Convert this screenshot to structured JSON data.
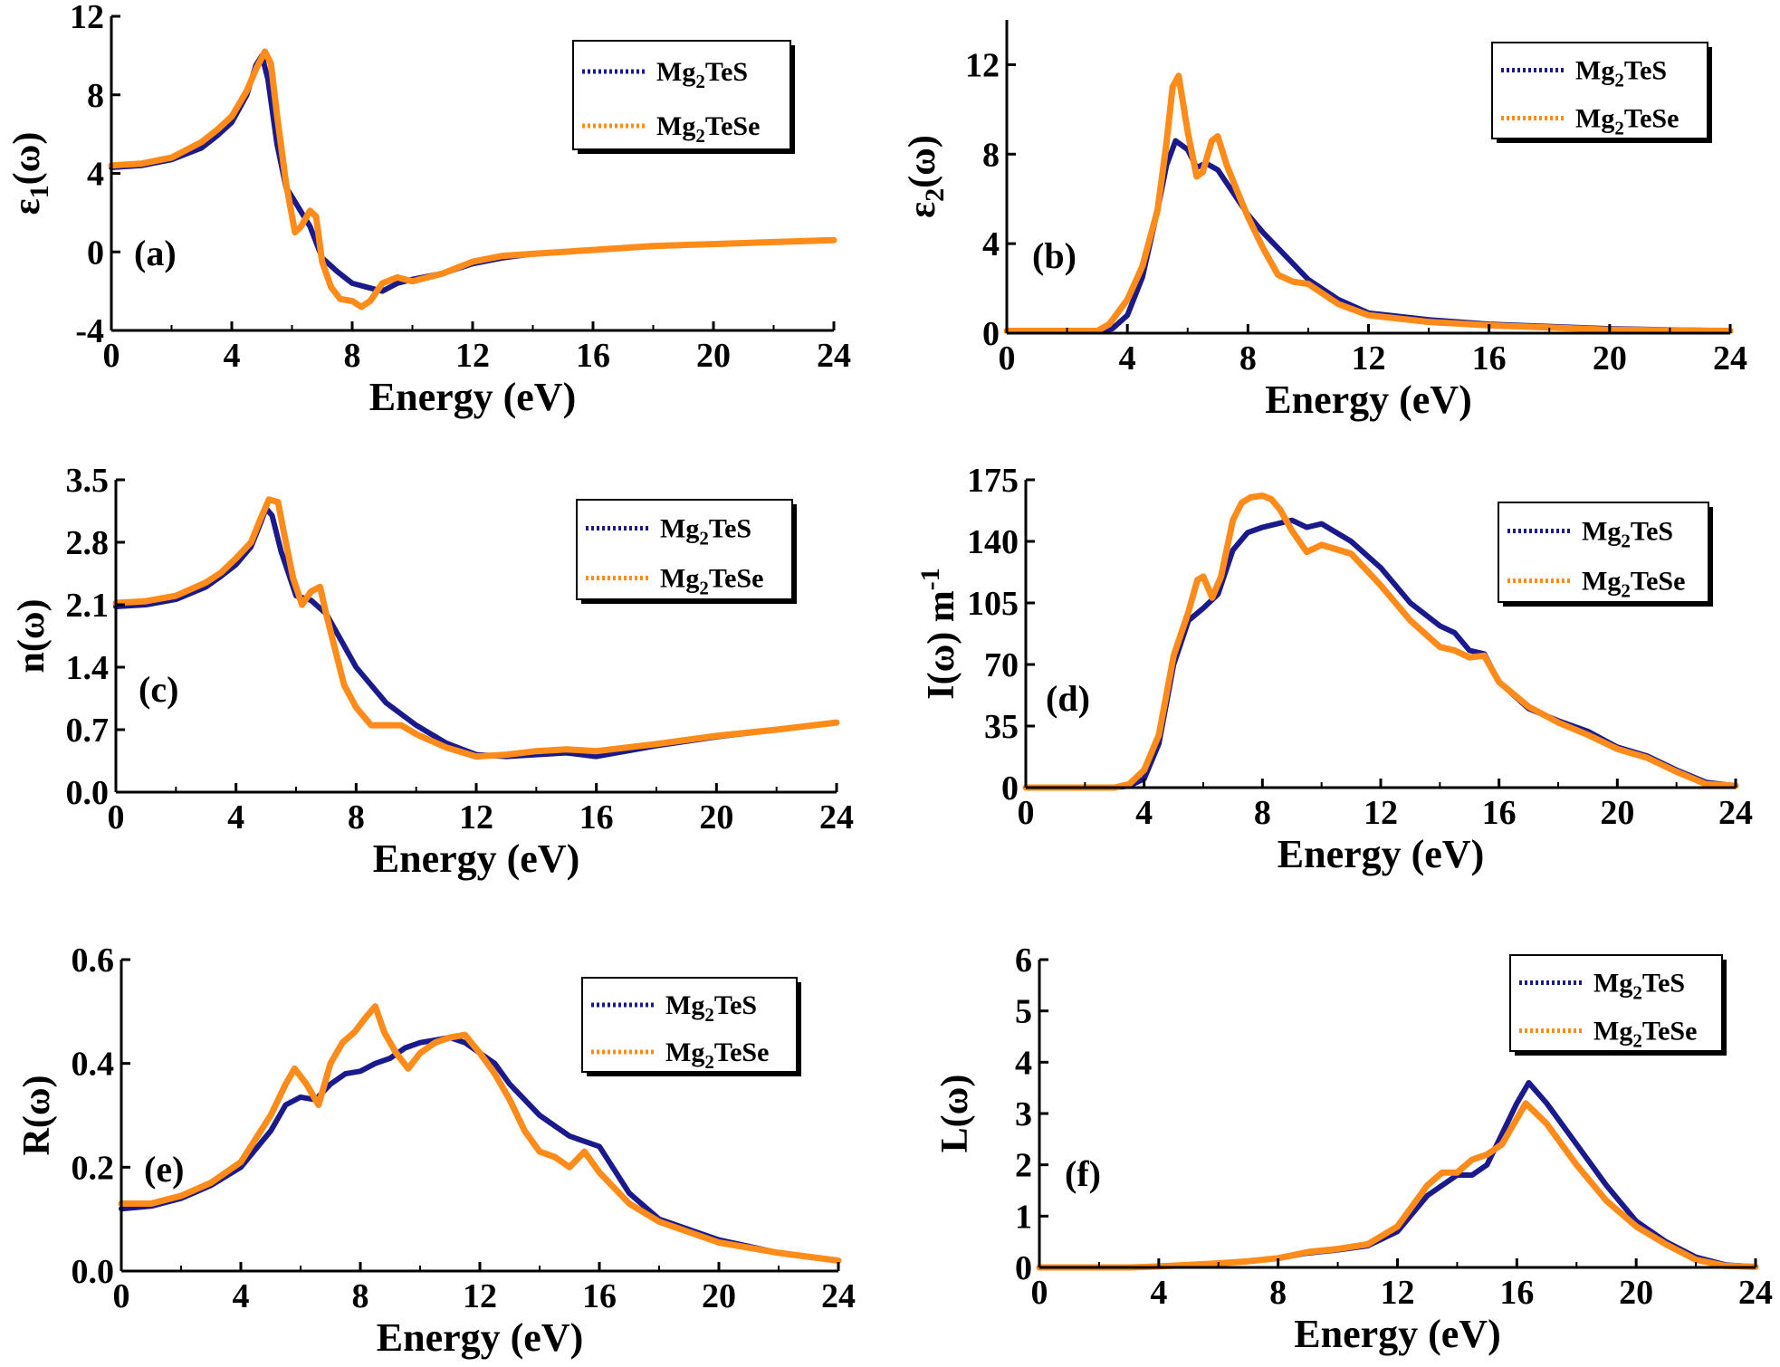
{
  "colors": {
    "Mg2TeS": "#1a1a8c",
    "Mg2TeSe": "#ff8c1a",
    "axis": "#000000"
  },
  "chart_data": [
    {
      "type": "line",
      "panel_label": "(a)",
      "xlabel": "Energy (eV)",
      "ylabel": "ε1(ω)",
      "ylabel_parts": {
        "base": "ε",
        "sub": "1",
        "rest": "(ω)"
      },
      "xlim": [
        0,
        24
      ],
      "ylim": [
        -4,
        12
      ],
      "xticks": [
        0,
        4,
        8,
        12,
        16,
        20,
        24
      ],
      "yticks": [
        -4,
        0,
        4,
        8,
        12
      ],
      "legend": {
        "placement": "top-right",
        "entries": [
          {
            "base": "Mg",
            "sub": "2",
            "rest": "TeS"
          },
          {
            "base": "Mg",
            "sub": "2",
            "rest": "TeSe"
          }
        ]
      },
      "series": [
        {
          "name": "Mg2TeS",
          "x": [
            0,
            1,
            2,
            3,
            3.5,
            4,
            4.5,
            4.8,
            5.0,
            5.2,
            5.5,
            5.8,
            6.2,
            6.6,
            7.0,
            7.5,
            8.0,
            8.5,
            9.0,
            9.5,
            10,
            11,
            12,
            13,
            14,
            16,
            18,
            20,
            22,
            24
          ],
          "y": [
            4.3,
            4.4,
            4.7,
            5.3,
            5.9,
            6.6,
            8.0,
            9.5,
            10.0,
            8.8,
            5.5,
            3.3,
            2.3,
            1.3,
            -0.3,
            -1.0,
            -1.6,
            -1.8,
            -2.0,
            -1.6,
            -1.4,
            -1.1,
            -0.6,
            -0.3,
            -0.1,
            0.1,
            0.3,
            0.4,
            0.5,
            0.6
          ]
        },
        {
          "name": "Mg2TeSe",
          "x": [
            0,
            1,
            2,
            3,
            3.5,
            4,
            4.5,
            4.8,
            5.1,
            5.3,
            5.5,
            5.8,
            6.1,
            6.3,
            6.6,
            6.8,
            7.0,
            7.3,
            7.6,
            8.0,
            8.3,
            8.6,
            9.0,
            9.5,
            10,
            11,
            12,
            13,
            14,
            16,
            18,
            20,
            22,
            24
          ],
          "y": [
            4.4,
            4.5,
            4.8,
            5.6,
            6.2,
            6.9,
            8.2,
            9.3,
            10.2,
            9.6,
            7.0,
            3.5,
            1.0,
            1.3,
            2.1,
            1.8,
            -0.5,
            -1.8,
            -2.4,
            -2.5,
            -2.8,
            -2.5,
            -1.6,
            -1.3,
            -1.5,
            -1.1,
            -0.5,
            -0.2,
            -0.1,
            0.1,
            0.3,
            0.4,
            0.5,
            0.6
          ]
        }
      ]
    },
    {
      "type": "line",
      "panel_label": "(b)",
      "xlabel": "Energy (eV)",
      "ylabel": "ε2(ω)",
      "ylabel_parts": {
        "base": "ε",
        "sub": "2",
        "rest": "(ω)"
      },
      "xlim": [
        0,
        24
      ],
      "ylim": [
        0,
        14
      ],
      "xticks": [
        0,
        4,
        8,
        12,
        16,
        20,
        24
      ],
      "yticks": [
        0,
        4,
        8,
        12
      ],
      "legend": {
        "placement": "top-right",
        "entries": [
          {
            "base": "Mg",
            "sub": "2",
            "rest": "TeS"
          },
          {
            "base": "Mg",
            "sub": "2",
            "rest": "TeSe"
          }
        ]
      },
      "series": [
        {
          "name": "Mg2TeS",
          "x": [
            0,
            3,
            3.5,
            4,
            4.5,
            5.0,
            5.3,
            5.6,
            6.0,
            6.3,
            6.6,
            7.0,
            7.5,
            8,
            8.5,
            9,
            10,
            11,
            12,
            14,
            16,
            18,
            20,
            24
          ],
          "y": [
            0.1,
            0.1,
            0.2,
            0.8,
            2.5,
            5.5,
            7.5,
            8.6,
            8.2,
            7.4,
            7.6,
            7.3,
            6.3,
            5.3,
            4.5,
            3.8,
            2.4,
            1.5,
            0.9,
            0.6,
            0.4,
            0.3,
            0.2,
            0.1
          ]
        },
        {
          "name": "Mg2TeSe",
          "x": [
            0,
            3,
            3.4,
            4,
            4.5,
            5.0,
            5.3,
            5.5,
            5.7,
            6.0,
            6.3,
            6.5,
            6.8,
            7.0,
            7.3,
            7.6,
            8,
            8.5,
            9,
            9.5,
            10,
            11,
            12,
            14,
            16,
            18,
            20,
            24
          ],
          "y": [
            0.1,
            0.1,
            0.4,
            1.5,
            3.0,
            5.5,
            8.5,
            11.0,
            11.5,
            9.0,
            7.0,
            7.2,
            8.6,
            8.8,
            7.5,
            6.5,
            5.2,
            3.8,
            2.6,
            2.3,
            2.2,
            1.3,
            0.8,
            0.5,
            0.35,
            0.25,
            0.15,
            0.1
          ]
        }
      ]
    },
    {
      "type": "line",
      "panel_label": "(c)",
      "xlabel": "Energy (eV)",
      "ylabel": "n(ω)",
      "xlim": [
        0,
        24
      ],
      "ylim": [
        0,
        3.5
      ],
      "xticks": [
        0,
        4,
        8,
        12,
        16,
        20,
        24
      ],
      "yticks": [
        "0.0",
        "0.7",
        "1.4",
        "2.1",
        "2.8",
        "3.5"
      ],
      "legend": {
        "placement": "top-right",
        "entries": [
          {
            "base": "Mg",
            "sub": "2",
            "rest": "TeS"
          },
          {
            "base": "Mg",
            "sub": "2",
            "rest": "TeSe"
          }
        ]
      },
      "series": [
        {
          "name": "Mg2TeS",
          "x": [
            0,
            1,
            2,
            3,
            3.5,
            4,
            4.5,
            4.8,
            5.0,
            5.2,
            5.5,
            6.0,
            6.5,
            7.0,
            7.5,
            8,
            9,
            10,
            11,
            12,
            13,
            14,
            15,
            16,
            17,
            18,
            20,
            22,
            24
          ],
          "y": [
            2.08,
            2.1,
            2.16,
            2.3,
            2.42,
            2.55,
            2.75,
            3.0,
            3.18,
            3.1,
            2.7,
            2.2,
            2.15,
            2.0,
            1.7,
            1.4,
            1.0,
            0.75,
            0.55,
            0.42,
            0.4,
            0.42,
            0.44,
            0.4,
            0.46,
            0.52,
            0.62,
            0.7,
            0.78
          ]
        },
        {
          "name": "Mg2TeSe",
          "x": [
            0,
            1,
            2,
            3,
            3.5,
            4,
            4.5,
            4.8,
            5.1,
            5.4,
            5.6,
            5.9,
            6.2,
            6.5,
            6.8,
            7.0,
            7.3,
            7.6,
            8,
            8.5,
            9,
            9.5,
            10,
            11,
            12,
            13,
            14,
            15,
            16,
            18,
            20,
            22,
            24
          ],
          "y": [
            2.12,
            2.14,
            2.2,
            2.35,
            2.46,
            2.62,
            2.8,
            3.05,
            3.28,
            3.25,
            2.9,
            2.4,
            2.1,
            2.25,
            2.3,
            2.0,
            1.6,
            1.2,
            0.95,
            0.75,
            0.75,
            0.75,
            0.65,
            0.5,
            0.4,
            0.42,
            0.46,
            0.48,
            0.46,
            0.54,
            0.63,
            0.7,
            0.78
          ]
        }
      ]
    },
    {
      "type": "line",
      "panel_label": "(d)",
      "xlabel": "Energy (eV)",
      "ylabel": "I(ω) m-1",
      "ylabel_parts": {
        "base": "I(ω) m",
        "sup": "-1"
      },
      "xlim": [
        0,
        24
      ],
      "ylim": [
        0,
        175
      ],
      "xticks": [
        0,
        4,
        8,
        12,
        16,
        20,
        24
      ],
      "yticks": [
        0,
        35,
        70,
        105,
        140,
        175
      ],
      "legend": {
        "placement": "top-right",
        "entries": [
          {
            "base": "Mg",
            "sub": "2",
            "rest": "TeS"
          },
          {
            "base": "Mg",
            "sub": "2",
            "rest": "TeSe"
          }
        ]
      },
      "series": [
        {
          "name": "Mg2TeS",
          "x": [
            0,
            3,
            3.5,
            4,
            4.5,
            5.0,
            5.5,
            6.0,
            6.5,
            7.0,
            7.5,
            8,
            8.5,
            9,
            9.5,
            10,
            11,
            12,
            13,
            14,
            14.5,
            15,
            15.5,
            16,
            17,
            18,
            19,
            20,
            21,
            22,
            23,
            24
          ],
          "y": [
            0,
            0,
            1,
            5,
            25,
            70,
            95,
            102,
            110,
            135,
            145,
            148,
            150,
            152,
            148,
            150,
            140,
            125,
            105,
            92,
            88,
            78,
            76,
            60,
            45,
            38,
            32,
            23,
            18,
            10,
            3,
            1
          ]
        },
        {
          "name": "Mg2TeSe",
          "x": [
            0,
            3,
            3.5,
            4,
            4.5,
            5.0,
            5.5,
            5.8,
            6.0,
            6.3,
            6.6,
            7.0,
            7.3,
            7.6,
            8.0,
            8.3,
            8.6,
            9.0,
            9.5,
            10,
            11,
            12,
            13,
            14,
            14.5,
            15,
            15.5,
            16,
            17,
            18,
            19,
            20,
            21,
            22,
            23,
            24
          ],
          "y": [
            0,
            0,
            2,
            10,
            30,
            75,
            100,
            118,
            120,
            108,
            120,
            152,
            162,
            165,
            166,
            164,
            158,
            146,
            134,
            138,
            133,
            115,
            95,
            80,
            78,
            74,
            75,
            60,
            46,
            37,
            30,
            22,
            17,
            9,
            2,
            1
          ]
        }
      ]
    },
    {
      "type": "line",
      "panel_label": "(e)",
      "xlabel": "Energy (eV)",
      "ylabel": "R(ω)",
      "xlim": [
        0,
        24
      ],
      "ylim": [
        0,
        0.6
      ],
      "xticks": [
        0,
        4,
        8,
        12,
        16,
        20,
        24
      ],
      "yticks": [
        "0.0",
        "0.2",
        "0.4",
        "0.6"
      ],
      "legend": {
        "placement": "top-right",
        "entries": [
          {
            "base": "Mg",
            "sub": "2",
            "rest": "TeS"
          },
          {
            "base": "Mg",
            "sub": "2",
            "rest": "TeSe"
          }
        ]
      },
      "series": [
        {
          "name": "Mg2TeS",
          "x": [
            0,
            1,
            2,
            3,
            4,
            5,
            5.5,
            6,
            6.5,
            7,
            7.5,
            8,
            8.5,
            9,
            9.5,
            10,
            10.5,
            11,
            11.5,
            12,
            12.5,
            13,
            14,
            14.5,
            15,
            15.5,
            16,
            17,
            18,
            20,
            22,
            24
          ],
          "y": [
            0.12,
            0.125,
            0.14,
            0.165,
            0.2,
            0.27,
            0.32,
            0.335,
            0.33,
            0.36,
            0.38,
            0.385,
            0.4,
            0.41,
            0.43,
            0.44,
            0.445,
            0.45,
            0.44,
            0.42,
            0.4,
            0.36,
            0.3,
            0.28,
            0.26,
            0.25,
            0.24,
            0.15,
            0.1,
            0.06,
            0.035,
            0.02
          ]
        },
        {
          "name": "Mg2TeSe",
          "x": [
            0,
            1,
            2,
            3,
            4,
            5,
            5.5,
            5.8,
            6.2,
            6.6,
            7.0,
            7.4,
            7.8,
            8.2,
            8.5,
            8.8,
            9.2,
            9.6,
            10,
            10.5,
            11,
            11.5,
            12,
            12.5,
            13,
            13.5,
            14,
            14.5,
            15,
            15.5,
            16,
            17,
            18,
            20,
            22,
            24
          ],
          "y": [
            0.13,
            0.13,
            0.145,
            0.17,
            0.21,
            0.3,
            0.36,
            0.39,
            0.36,
            0.32,
            0.4,
            0.44,
            0.46,
            0.49,
            0.51,
            0.46,
            0.42,
            0.39,
            0.42,
            0.44,
            0.45,
            0.455,
            0.42,
            0.38,
            0.33,
            0.27,
            0.23,
            0.22,
            0.2,
            0.23,
            0.19,
            0.13,
            0.095,
            0.055,
            0.035,
            0.02
          ]
        }
      ]
    },
    {
      "type": "line",
      "panel_label": "(f)",
      "xlabel": "Energy (eV)",
      "ylabel": "L(ω)",
      "xlim": [
        0,
        24
      ],
      "ylim": [
        0,
        6
      ],
      "xticks": [
        0,
        4,
        8,
        12,
        16,
        20,
        24
      ],
      "yticks": [
        0,
        1,
        2,
        3,
        4,
        5,
        6
      ],
      "legend": {
        "placement": "top-right",
        "entries": [
          {
            "base": "Mg",
            "sub": "2",
            "rest": "TeS"
          },
          {
            "base": "Mg",
            "sub": "2",
            "rest": "TeSe"
          }
        ]
      },
      "series": [
        {
          "name": "Mg2TeS",
          "x": [
            0,
            3,
            4,
            5,
            6,
            7,
            8,
            9,
            10,
            11,
            12,
            12.5,
            13,
            13.5,
            14,
            14.5,
            15,
            15.5,
            16,
            16.4,
            17,
            18,
            19,
            20,
            21,
            22,
            23,
            24
          ],
          "y": [
            0,
            0,
            0.02,
            0.05,
            0.08,
            0.12,
            0.18,
            0.28,
            0.34,
            0.42,
            0.7,
            1.05,
            1.4,
            1.6,
            1.8,
            1.8,
            2.0,
            2.6,
            3.2,
            3.6,
            3.2,
            2.4,
            1.6,
            0.9,
            0.5,
            0.2,
            0.05,
            0.01
          ]
        },
        {
          "name": "Mg2TeSe",
          "x": [
            0,
            3,
            4,
            5,
            6,
            7,
            8,
            9,
            10,
            11,
            12,
            12.5,
            13,
            13.5,
            14,
            14.5,
            15,
            15.5,
            16,
            16.3,
            17,
            18,
            19,
            20,
            21,
            22,
            23,
            24
          ],
          "y": [
            0,
            0,
            0.02,
            0.05,
            0.08,
            0.12,
            0.18,
            0.3,
            0.36,
            0.45,
            0.8,
            1.2,
            1.6,
            1.85,
            1.85,
            2.1,
            2.2,
            2.4,
            2.9,
            3.2,
            2.8,
            2.0,
            1.3,
            0.8,
            0.45,
            0.15,
            0.03,
            0.01
          ]
        }
      ]
    }
  ]
}
